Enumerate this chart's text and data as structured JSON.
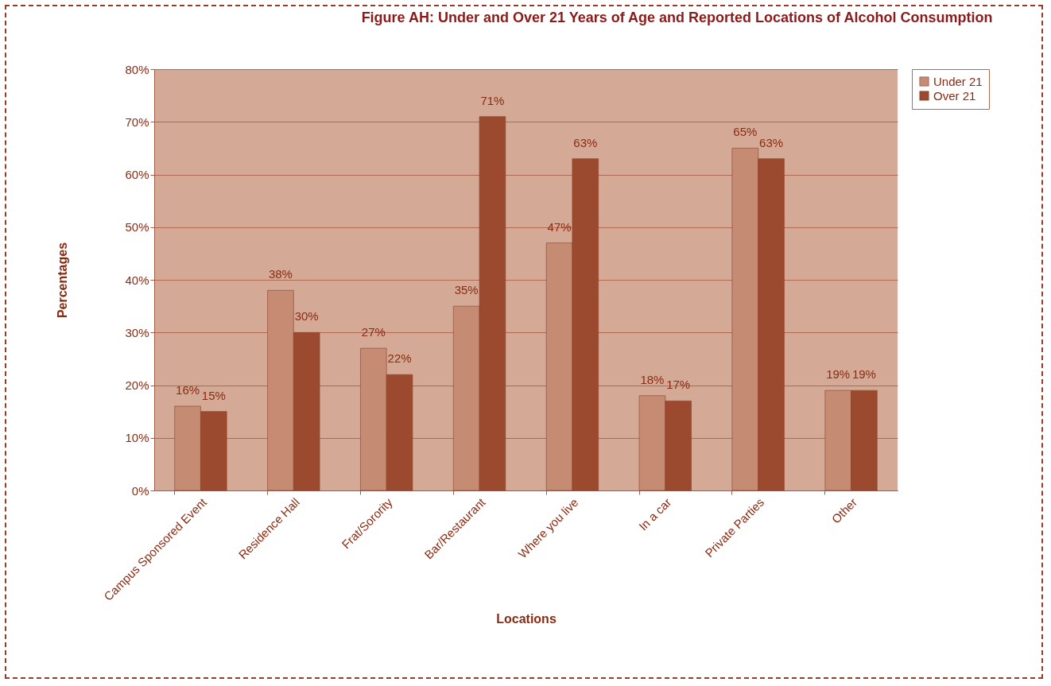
{
  "chart_data": {
    "type": "bar",
    "title": "Figure AH: Under and Over 21 Years of Age and Reported Locations of Alcohol Consumption",
    "xlabel": "Locations",
    "ylabel": "Percentages",
    "categories": [
      "Campus Sponsored Event",
      "Residence Hall",
      "Frat/Sorority",
      "Bar/Restaurant",
      "Where you live",
      "In a car",
      "Private Parties",
      "Other"
    ],
    "series": [
      {
        "name": "Under 21",
        "color": "#c68b73",
        "values": [
          16,
          38,
          27,
          35,
          47,
          18,
          65,
          19
        ],
        "value_labels": [
          "16%",
          "38%",
          "27%",
          "35%",
          "47%",
          "18%",
          "65%",
          "19%"
        ]
      },
      {
        "name": "Over 21",
        "color": "#9c4a2f",
        "values": [
          15,
          30,
          22,
          71,
          63,
          17,
          63,
          19
        ],
        "value_labels": [
          "15%",
          "30%",
          "22%",
          "71%",
          "63%",
          "17%",
          "63%",
          "19%"
        ]
      }
    ],
    "ylim": [
      0,
      80
    ],
    "yticks": [
      {
        "value": 0,
        "label": "0%"
      },
      {
        "value": 10,
        "label": "10%"
      },
      {
        "value": 20,
        "label": "20%"
      },
      {
        "value": 30,
        "label": "30%"
      },
      {
        "value": 40,
        "label": "40%"
      },
      {
        "value": 50,
        "label": "50%"
      },
      {
        "value": 60,
        "label": "60%"
      },
      {
        "value": 70,
        "label": "70%"
      },
      {
        "value": 80,
        "label": "80%"
      }
    ],
    "grid": "y",
    "legend": "right"
  }
}
